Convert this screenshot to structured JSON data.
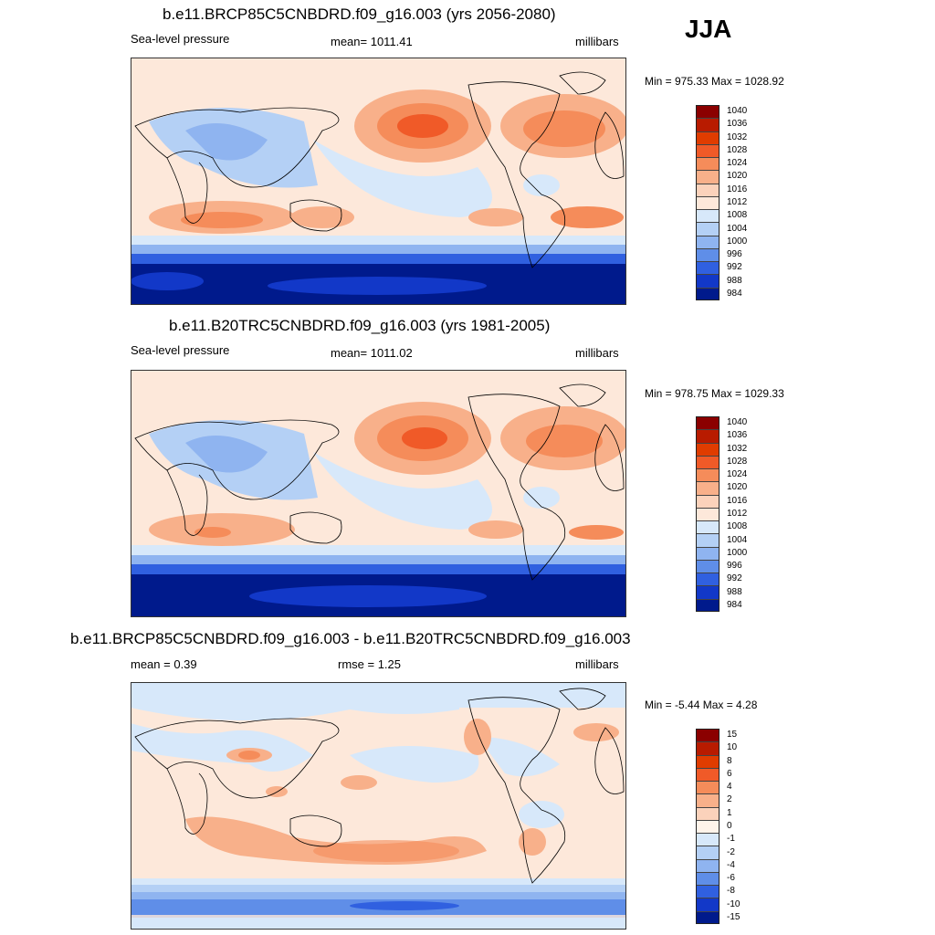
{
  "season": "JJA",
  "chart_data": [
    {
      "type": "heatmap",
      "title": "b.e11.BRCP85C5CNBDRD.f09_g16.003 (yrs 2056-2080)",
      "left_label": "Sea-level pressure",
      "center_label": "mean= 1011.41",
      "units": "millibars",
      "minmax_label": "Min = 975.33 Max = 1028.92",
      "mean": 1011.41,
      "min": 975.33,
      "max": 1028.92,
      "levels": [
        "1040",
        "1036",
        "1032",
        "1028",
        "1024",
        "1020",
        "1016",
        "1012",
        "1008",
        "1004",
        "1000",
        "996",
        "992",
        "988",
        "984"
      ],
      "colors": [
        "#8b0000",
        "#b81b00",
        "#e03c00",
        "#f05a28",
        "#f58c5a",
        "#f8b08a",
        "#fbd2bb",
        "#fde8da",
        "#d7e8fa",
        "#b4d0f5",
        "#8fb4f0",
        "#5f8ee8",
        "#3060e0",
        "#1238c8",
        "#001a8c"
      ]
    },
    {
      "type": "heatmap",
      "title": "b.e11.B20TRC5CNBDRD.f09_g16.003 (yrs 1981-2005)",
      "left_label": "Sea-level pressure",
      "center_label": "mean= 1011.02",
      "units": "millibars",
      "minmax_label": "Min = 978.75 Max = 1029.33",
      "mean": 1011.02,
      "min": 978.75,
      "max": 1029.33,
      "levels": [
        "1040",
        "1036",
        "1032",
        "1028",
        "1024",
        "1020",
        "1016",
        "1012",
        "1008",
        "1004",
        "1000",
        "996",
        "992",
        "988",
        "984"
      ],
      "colors": [
        "#8b0000",
        "#b81b00",
        "#e03c00",
        "#f05a28",
        "#f58c5a",
        "#f8b08a",
        "#fbd2bb",
        "#fde8da",
        "#d7e8fa",
        "#b4d0f5",
        "#8fb4f0",
        "#5f8ee8",
        "#3060e0",
        "#1238c8",
        "#001a8c"
      ]
    },
    {
      "type": "heatmap",
      "title": "b.e11.BRCP85C5CNBDRD.f09_g16.003 - b.e11.B20TRC5CNBDRD.f09_g16.003",
      "left_label": "mean =   0.39",
      "center_label": "rmse =   1.25",
      "units": "millibars",
      "minmax_label": "Min =  -5.44 Max =   4.28",
      "mean": 0.39,
      "rmse": 1.25,
      "min": -5.44,
      "max": 4.28,
      "levels": [
        "15",
        "10",
        "8",
        "6",
        "4",
        "2",
        "1",
        "0",
        "-1",
        "-2",
        "-4",
        "-6",
        "-8",
        "-10",
        "-15"
      ],
      "colors": [
        "#8b0000",
        "#b81b00",
        "#e03c00",
        "#f05a28",
        "#f58c5a",
        "#f8b08a",
        "#fbd2bb",
        "#fff4ea",
        "#d7e8fa",
        "#b4d0f5",
        "#8fb4f0",
        "#5f8ee8",
        "#3060e0",
        "#1238c8",
        "#001a8c"
      ]
    }
  ]
}
